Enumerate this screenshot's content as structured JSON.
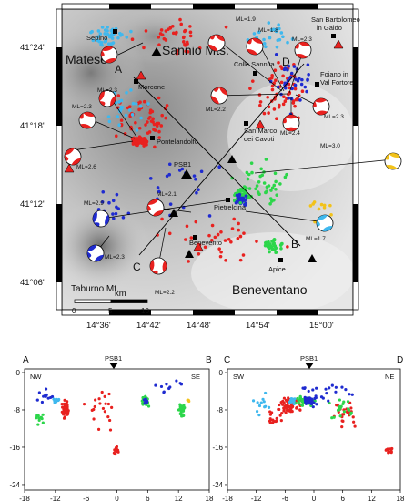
{
  "map": {
    "lat_labels": [
      "41°24'",
      "41°18'",
      "41°12'",
      "41°06'"
    ],
    "lon_labels": [
      "14°36'",
      "14°42'",
      "14°48'",
      "14°54'",
      "15°00'"
    ],
    "regions": {
      "matese": "Matese",
      "sannio": "Sannio Mts.",
      "beneventano": "Beneventano",
      "taburno": "Taburno Mt."
    },
    "towns": {
      "sepino": "Sepino",
      "morcone": "Morcone",
      "pontelandolfo": "Pontelandolfo",
      "colle_sannita": "Colle Sannita",
      "san_marco_1": "San Marco",
      "san_marco_2": "dei Cavoti",
      "san_bartolomeo_1": "San Bartolomeo",
      "san_bartolomeo_2": "in Galdo",
      "foiano_1": "Foiano in",
      "foiano_2": "Val Fortore",
      "pietrelcina": "Pietrelcina",
      "benevento": "Benevento",
      "apice": "Apice"
    },
    "station": "PSB1",
    "section_letters": {
      "a": "A",
      "b": "B",
      "c": "C",
      "d": "D"
    },
    "magnitudes": [
      "ML=1.9",
      "ML=1.8",
      "ML=2.3",
      "ML=2.3",
      "ML=2.3",
      "ML=2.2",
      "ML=2.3",
      "ML=2.4",
      "ML=2.6",
      "ML=3.0",
      "ML=2.1",
      "ML=2.9",
      "ML=2.3",
      "ML=2.2",
      "ML=1.7"
    ],
    "scale": {
      "unit": "km",
      "ticks": [
        "0",
        "5",
        "10"
      ]
    }
  },
  "sections": {
    "left": {
      "start": "A",
      "end": "B",
      "dir_start": "NW",
      "dir_end": "SE",
      "x_ticks": [
        "-18",
        "-12",
        "-6",
        "0",
        "6",
        "12",
        "18"
      ],
      "y_ticks": [
        "0",
        "-8",
        "-16",
        "-24"
      ]
    },
    "right": {
      "start": "C",
      "end": "D",
      "dir_start": "SW",
      "dir_end": "NE",
      "x_ticks": [
        "-18",
        "-12",
        "-6",
        "0",
        "6",
        "12",
        "18"
      ],
      "y_ticks": [
        "0",
        "-8",
        "-16",
        "-24"
      ]
    },
    "station": "PSB1"
  },
  "colors": {
    "red": "#e8211f",
    "blue": "#1f2bd0",
    "cyan": "#3fb8ee",
    "green": "#2cd64a",
    "yellow": "#f2c21a"
  }
}
